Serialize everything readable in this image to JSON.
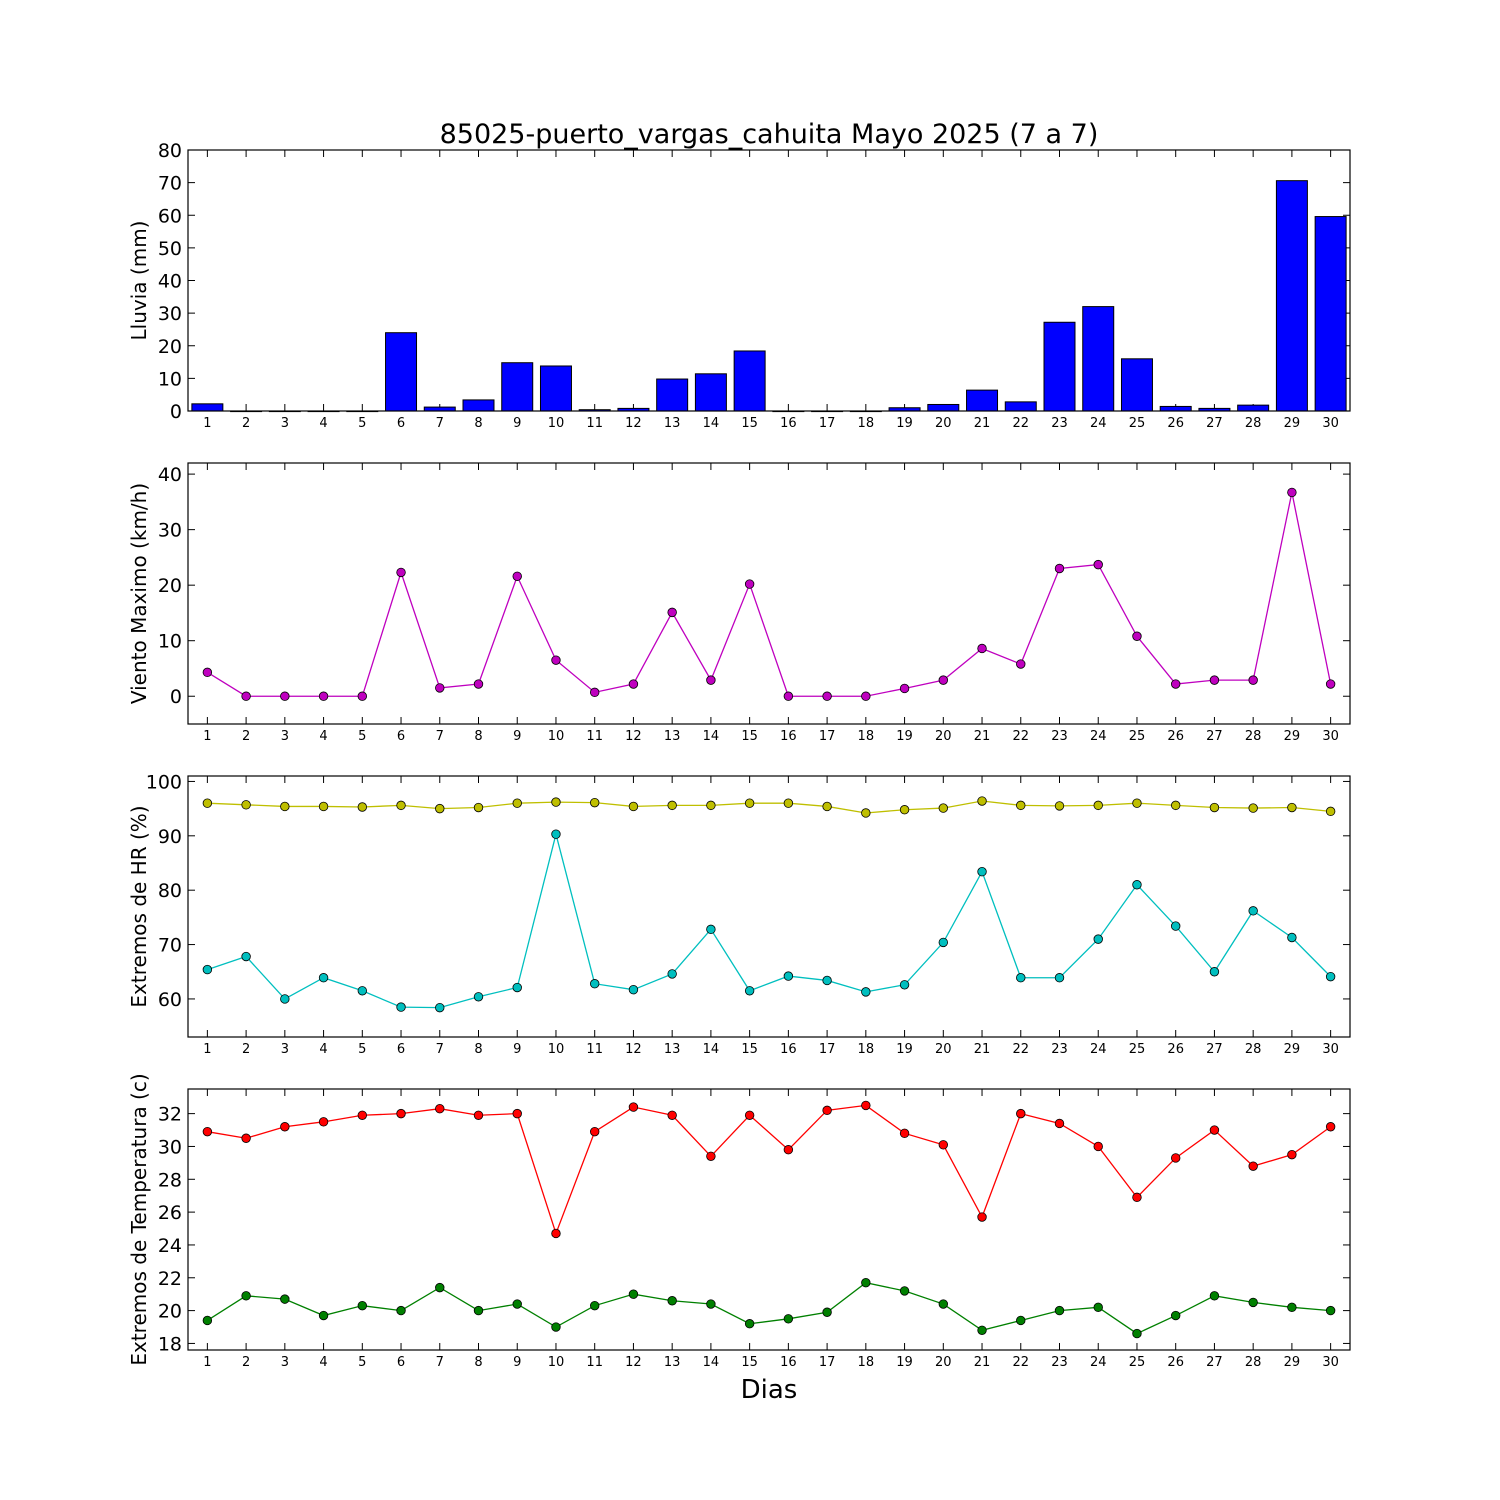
{
  "title": "85025-puerto_vargas_cahuita Mayo 2025  (7 a 7)",
  "xlabel": "Dias",
  "chart_data": [
    {
      "type": "bar",
      "ylabel": "Lluvia (mm)",
      "ylim": [
        0,
        80
      ],
      "yticks": [
        0,
        10,
        20,
        30,
        40,
        50,
        60,
        70,
        80
      ],
      "xlim": [
        0.5,
        30.5
      ],
      "categories": [
        1,
        2,
        3,
        4,
        5,
        6,
        7,
        8,
        9,
        10,
        11,
        12,
        13,
        14,
        15,
        16,
        17,
        18,
        19,
        20,
        21,
        22,
        23,
        24,
        25,
        26,
        27,
        28,
        29,
        30
      ],
      "series": [
        {
          "color": "#0000ff",
          "values": [
            2.2,
            0,
            0,
            0,
            0,
            24,
            1.2,
            3.4,
            14.8,
            13.8,
            0.4,
            0.8,
            9.8,
            11.4,
            18.4,
            0,
            0,
            0,
            1,
            2,
            6.4,
            2.8,
            27.2,
            32,
            16,
            1.4,
            0.8,
            1.8,
            70.6,
            59.6
          ]
        }
      ]
    },
    {
      "type": "line",
      "ylabel": "Viento Maximo (km/h)",
      "ylim": [
        -5,
        42
      ],
      "yticks": [
        0,
        10,
        20,
        30,
        40
      ],
      "xlim": [
        0.5,
        30.5
      ],
      "x": [
        1,
        2,
        3,
        4,
        5,
        6,
        7,
        8,
        9,
        10,
        11,
        12,
        13,
        14,
        15,
        16,
        17,
        18,
        19,
        20,
        21,
        22,
        23,
        24,
        25,
        26,
        27,
        28,
        29,
        30
      ],
      "series": [
        {
          "color": "#bf00bf",
          "values": [
            4.3,
            0,
            0,
            0,
            0,
            22.3,
            1.5,
            2.2,
            21.6,
            6.5,
            0.7,
            2.2,
            15.1,
            2.9,
            20.2,
            0,
            0,
            0,
            1.4,
            2.9,
            8.6,
            5.8,
            23,
            23.7,
            10.8,
            2.2,
            2.9,
            2.9,
            36.7,
            2.2
          ]
        }
      ]
    },
    {
      "type": "line",
      "ylabel": "Extremos de HR (%)",
      "ylim": [
        53,
        101
      ],
      "yticks": [
        60,
        70,
        80,
        90,
        100
      ],
      "xlim": [
        0.5,
        30.5
      ],
      "x": [
        1,
        2,
        3,
        4,
        5,
        6,
        7,
        8,
        9,
        10,
        11,
        12,
        13,
        14,
        15,
        16,
        17,
        18,
        19,
        20,
        21,
        22,
        23,
        24,
        25,
        26,
        27,
        28,
        29,
        30
      ],
      "series": [
        {
          "color": "#bfbf00",
          "values": [
            96,
            95.7,
            95.4,
            95.4,
            95.3,
            95.6,
            95,
            95.2,
            96,
            96.2,
            96.1,
            95.4,
            95.6,
            95.6,
            96,
            96,
            95.4,
            94.2,
            94.8,
            95.1,
            96.4,
            95.6,
            95.5,
            95.6,
            96,
            95.6,
            95.2,
            95.1,
            95.2,
            94.5
          ]
        },
        {
          "color": "#00bfbf",
          "values": [
            65.4,
            67.8,
            60,
            63.9,
            61.5,
            58.5,
            58.4,
            60.4,
            62.1,
            90.3,
            62.8,
            61.7,
            64.6,
            72.8,
            61.5,
            64.2,
            63.4,
            61.3,
            62.6,
            70.4,
            83.4,
            63.9,
            63.9,
            71,
            81,
            73.4,
            65,
            76.2,
            71.3,
            64.1
          ]
        }
      ]
    },
    {
      "type": "line",
      "ylabel": "Extremos de Temperatura (c)",
      "ylim": [
        17.6,
        33.5
      ],
      "yticks": [
        18,
        20,
        22,
        24,
        26,
        28,
        30,
        32
      ],
      "xlim": [
        0.5,
        30.5
      ],
      "x": [
        1,
        2,
        3,
        4,
        5,
        6,
        7,
        8,
        9,
        10,
        11,
        12,
        13,
        14,
        15,
        16,
        17,
        18,
        19,
        20,
        21,
        22,
        23,
        24,
        25,
        26,
        27,
        28,
        29,
        30
      ],
      "series": [
        {
          "color": "#ff0000",
          "values": [
            30.9,
            30.5,
            31.2,
            31.5,
            31.9,
            32,
            32.3,
            31.9,
            32,
            24.7,
            30.9,
            32.4,
            31.9,
            29.4,
            31.9,
            29.8,
            32.2,
            32.5,
            30.8,
            30.1,
            25.7,
            32,
            31.4,
            30,
            26.9,
            29.3,
            31,
            28.8,
            29.5,
            31.2
          ]
        },
        {
          "color": "#008000",
          "values": [
            19.4,
            20.9,
            20.7,
            19.7,
            20.3,
            20,
            21.4,
            20,
            20.4,
            19,
            20.3,
            21,
            20.6,
            20.4,
            19.2,
            19.5,
            19.9,
            21.7,
            21.2,
            20.4,
            18.8,
            19.4,
            20,
            20.2,
            18.6,
            19.7,
            20.9,
            20.5,
            20.2,
            20
          ]
        }
      ]
    }
  ]
}
